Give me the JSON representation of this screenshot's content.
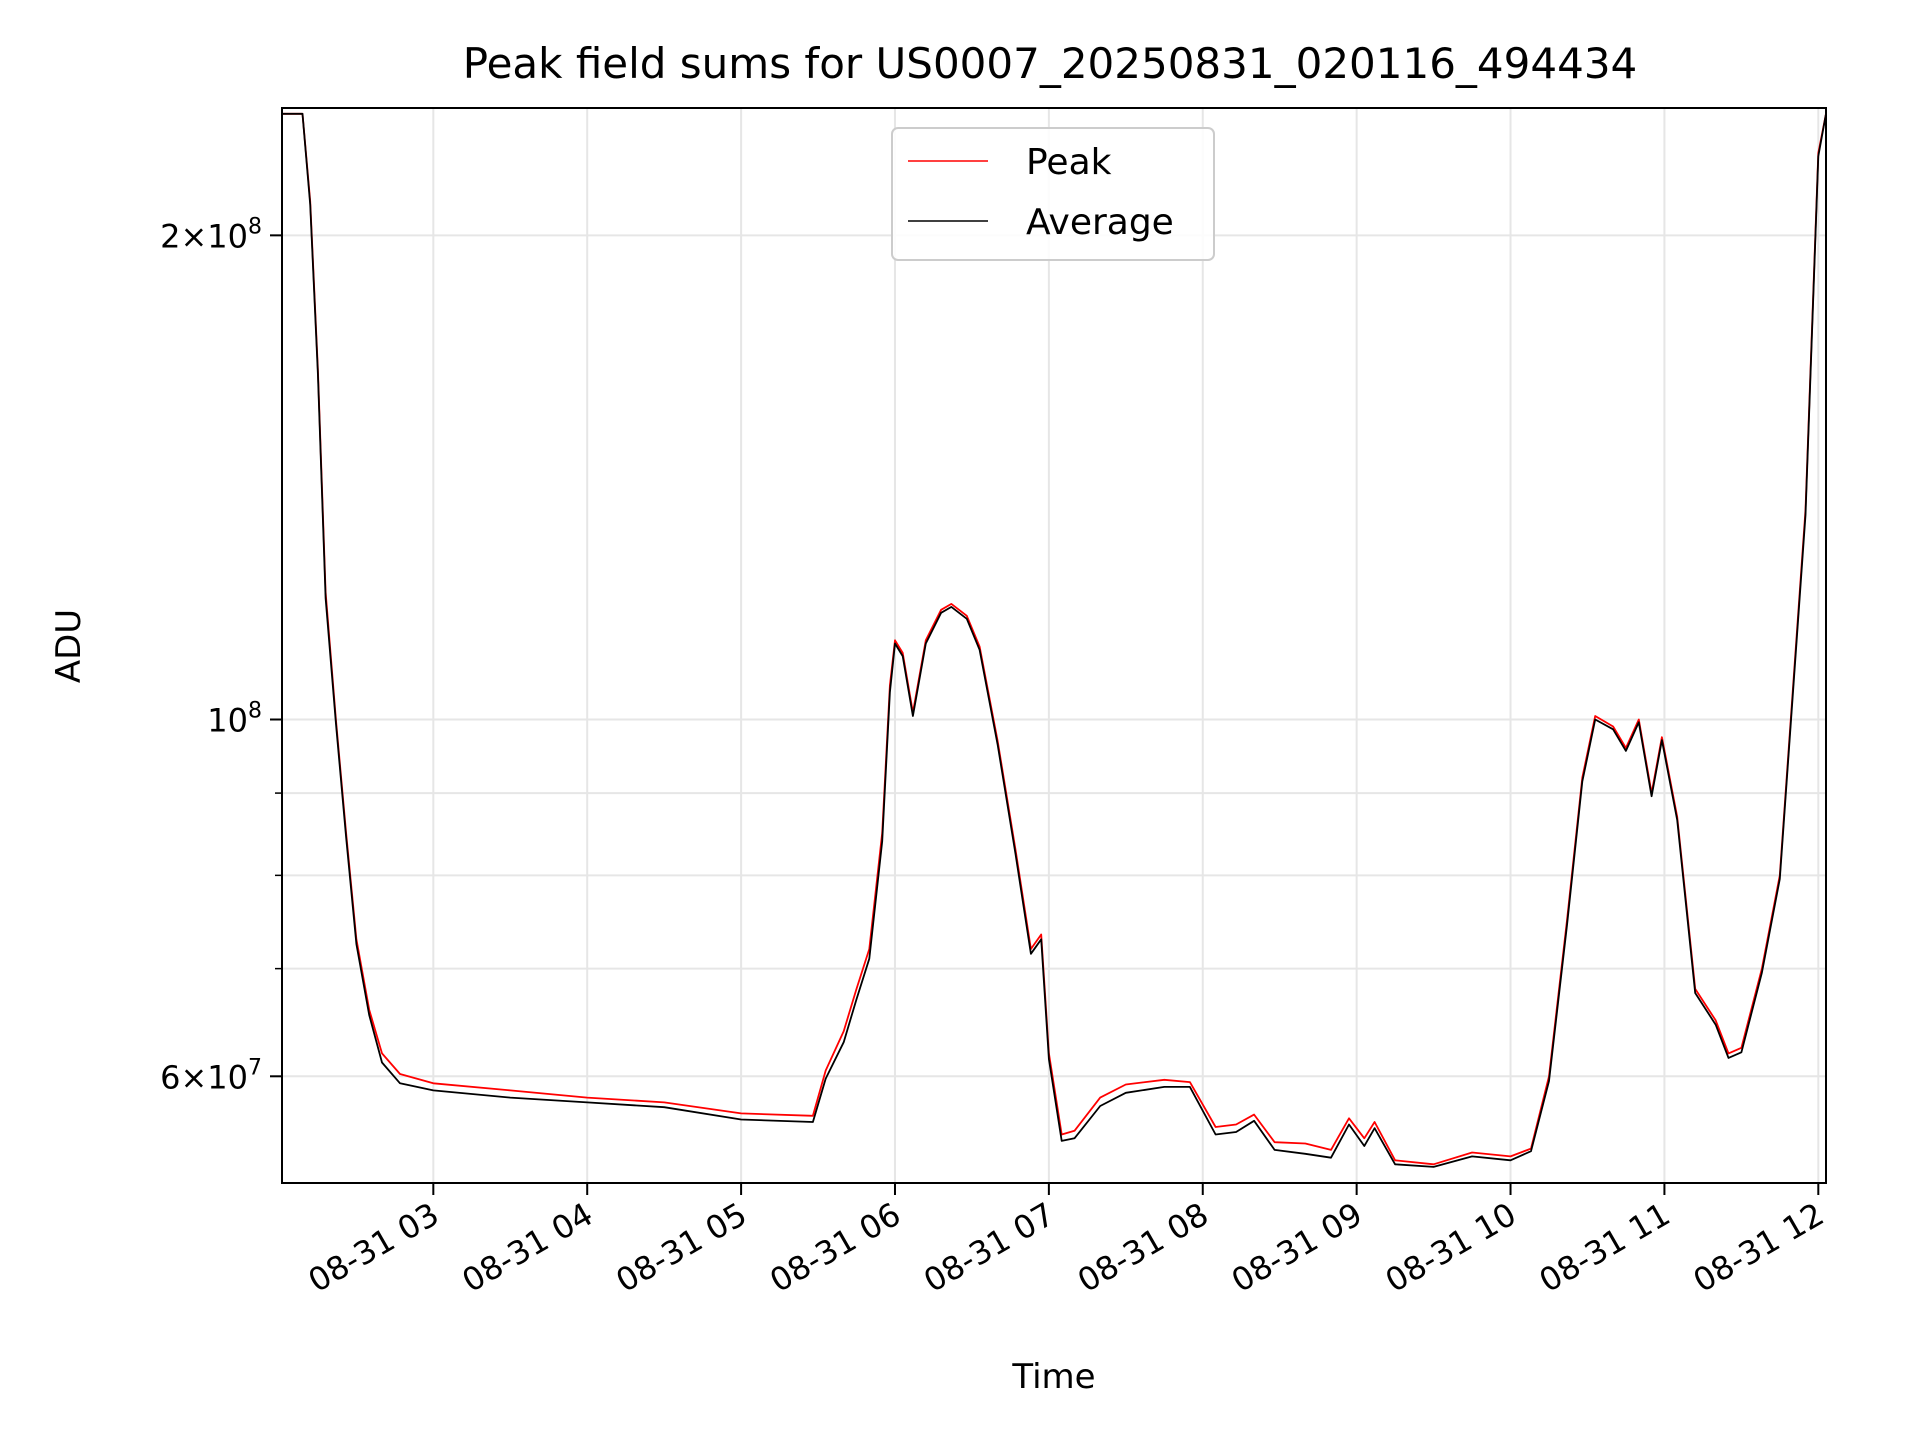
{
  "chart_data": {
    "type": "line",
    "title": "Peak field sums for US0007_20250831_020116_494434",
    "xlabel": "Time",
    "ylabel": "ADU",
    "y_scale": "log",
    "grid": true,
    "legend_position": "upper center",
    "x_range": [
      "08-31 02:01",
      "08-31 12:03"
    ],
    "ylim": [
      51500000,
      240000000
    ],
    "x_ticks": [
      "08-31 03",
      "08-31 04",
      "08-31 05",
      "08-31 06",
      "08-31 07",
      "08-31 08",
      "08-31 09",
      "08-31 10",
      "08-31 11",
      "08-31 12"
    ],
    "y_tick_labels": [
      {
        "value": 60000000,
        "label": "6 × 10^7",
        "mantissa": "6",
        "exponent": "7"
      },
      {
        "value": 100000000,
        "label": "10^8",
        "mantissa": "",
        "exponent": "8"
      },
      {
        "value": 200000000,
        "label": "2 × 10^8",
        "mantissa": "2",
        "exponent": "8"
      }
    ],
    "y_minor_ticks": [
      70000000,
      80000000,
      90000000
    ],
    "series": [
      {
        "name": "Peak",
        "color": "#ff0000",
        "points": [
          [
            "08-31 02:01",
            238000000
          ],
          [
            "08-31 02:09",
            238000000
          ],
          [
            "08-31 02:12",
            210000000
          ],
          [
            "08-31 02:15",
            165000000
          ],
          [
            "08-31 02:18",
            120000000
          ],
          [
            "08-31 02:22",
            100000000
          ],
          [
            "08-31 02:26",
            85000000
          ],
          [
            "08-31 02:30",
            73000000
          ],
          [
            "08-31 02:35",
            66000000
          ],
          [
            "08-31 02:40",
            62000000
          ],
          [
            "08-31 02:47",
            60200000
          ],
          [
            "08-31 03:00",
            59400000
          ],
          [
            "08-31 03:30",
            58800000
          ],
          [
            "08-31 04:00",
            58200000
          ],
          [
            "08-31 04:30",
            57800000
          ],
          [
            "08-31 05:00",
            56900000
          ],
          [
            "08-31 05:28",
            56700000
          ],
          [
            "08-31 05:33",
            60500000
          ],
          [
            "08-31 05:40",
            64000000
          ],
          [
            "08-31 05:45",
            68000000
          ],
          [
            "08-31 05:50",
            72000000
          ],
          [
            "08-31 05:55",
            85000000
          ],
          [
            "08-31 05:58",
            105000000
          ],
          [
            "08-31 06:00",
            112000000
          ],
          [
            "08-31 06:03",
            110000000
          ],
          [
            "08-31 06:07",
            101000000
          ],
          [
            "08-31 06:12",
            112000000
          ],
          [
            "08-31 06:18",
            117000000
          ],
          [
            "08-31 06:22",
            118000000
          ],
          [
            "08-31 06:28",
            116000000
          ],
          [
            "08-31 06:33",
            111000000
          ],
          [
            "08-31 06:40",
            97000000
          ],
          [
            "08-31 06:47",
            83000000
          ],
          [
            "08-31 06:53",
            72000000
          ],
          [
            "08-31 06:57",
            73500000
          ],
          [
            "08-31 07:00",
            62000000
          ],
          [
            "08-31 07:05",
            55200000
          ],
          [
            "08-31 07:10",
            55500000
          ],
          [
            "08-31 07:20",
            58200000
          ],
          [
            "08-31 07:30",
            59300000
          ],
          [
            "08-31 07:45",
            59700000
          ],
          [
            "08-31 07:55",
            59500000
          ],
          [
            "08-31 08:05",
            55800000
          ],
          [
            "08-31 08:13",
            56000000
          ],
          [
            "08-31 08:20",
            56800000
          ],
          [
            "08-31 08:28",
            54600000
          ],
          [
            "08-31 08:40",
            54500000
          ],
          [
            "08-31 08:50",
            54000000
          ],
          [
            "08-31 08:57",
            56500000
          ],
          [
            "08-31 09:03",
            54900000
          ],
          [
            "08-31 09:07",
            56200000
          ],
          [
            "08-31 09:15",
            53200000
          ],
          [
            "08-31 09:30",
            52900000
          ],
          [
            "08-31 09:45",
            53800000
          ],
          [
            "08-31 10:00",
            53500000
          ],
          [
            "08-31 10:08",
            54100000
          ],
          [
            "08-31 10:15",
            60000000
          ],
          [
            "08-31 10:22",
            75000000
          ],
          [
            "08-31 10:28",
            92000000
          ],
          [
            "08-31 10:33",
            100500000
          ],
          [
            "08-31 10:40",
            99000000
          ],
          [
            "08-31 10:45",
            96000000
          ],
          [
            "08-31 10:50",
            100000000
          ],
          [
            "08-31 10:55",
            90000000
          ],
          [
            "08-31 10:59",
            97500000
          ],
          [
            "08-31 11:05",
            87000000
          ],
          [
            "08-31 11:12",
            68000000
          ],
          [
            "08-31 11:20",
            65000000
          ],
          [
            "08-31 11:25",
            62000000
          ],
          [
            "08-31 11:30",
            62500000
          ],
          [
            "08-31 11:38",
            70000000
          ],
          [
            "08-31 11:45",
            80000000
          ],
          [
            "08-31 11:55",
            135000000
          ],
          [
            "08-31 12:00",
            225000000
          ],
          [
            "08-31 12:03",
            238000000
          ]
        ]
      },
      {
        "name": "Average",
        "color": "#000000",
        "points": [
          [
            "08-31 02:01",
            238000000
          ],
          [
            "08-31 02:09",
            238000000
          ],
          [
            "08-31 02:12",
            209000000
          ],
          [
            "08-31 02:15",
            164000000
          ],
          [
            "08-31 02:18",
            119000000
          ],
          [
            "08-31 02:22",
            99500000
          ],
          [
            "08-31 02:26",
            84500000
          ],
          [
            "08-31 02:30",
            72500000
          ],
          [
            "08-31 02:35",
            65500000
          ],
          [
            "08-31 02:40",
            61200000
          ],
          [
            "08-31 02:47",
            59400000
          ],
          [
            "08-31 03:00",
            58800000
          ],
          [
            "08-31 03:30",
            58200000
          ],
          [
            "08-31 04:00",
            57800000
          ],
          [
            "08-31 04:30",
            57400000
          ],
          [
            "08-31 05:00",
            56400000
          ],
          [
            "08-31 05:28",
            56200000
          ],
          [
            "08-31 05:33",
            59800000
          ],
          [
            "08-31 05:40",
            63000000
          ],
          [
            "08-31 05:45",
            67000000
          ],
          [
            "08-31 05:50",
            71000000
          ],
          [
            "08-31 05:55",
            84000000
          ],
          [
            "08-31 05:58",
            104000000
          ],
          [
            "08-31 06:00",
            111500000
          ],
          [
            "08-31 06:03",
            109500000
          ],
          [
            "08-31 06:07",
            100500000
          ],
          [
            "08-31 06:12",
            111500000
          ],
          [
            "08-31 06:18",
            116500000
          ],
          [
            "08-31 06:22",
            117500000
          ],
          [
            "08-31 06:28",
            115500000
          ],
          [
            "08-31 06:33",
            110500000
          ],
          [
            "08-31 06:40",
            96500000
          ],
          [
            "08-31 06:47",
            82500000
          ],
          [
            "08-31 06:53",
            71500000
          ],
          [
            "08-31 06:57",
            73000000
          ],
          [
            "08-31 07:00",
            61500000
          ],
          [
            "08-31 07:05",
            54700000
          ],
          [
            "08-31 07:10",
            54900000
          ],
          [
            "08-31 07:20",
            57500000
          ],
          [
            "08-31 07:30",
            58600000
          ],
          [
            "08-31 07:45",
            59100000
          ],
          [
            "08-31 07:55",
            59100000
          ],
          [
            "08-31 08:05",
            55200000
          ],
          [
            "08-31 08:13",
            55400000
          ],
          [
            "08-31 08:20",
            56300000
          ],
          [
            "08-31 08:28",
            54000000
          ],
          [
            "08-31 08:40",
            53700000
          ],
          [
            "08-31 08:50",
            53400000
          ],
          [
            "08-31 08:57",
            56000000
          ],
          [
            "08-31 09:03",
            54300000
          ],
          [
            "08-31 09:07",
            55700000
          ],
          [
            "08-31 09:15",
            52900000
          ],
          [
            "08-31 09:30",
            52700000
          ],
          [
            "08-31 09:45",
            53500000
          ],
          [
            "08-31 10:00",
            53200000
          ],
          [
            "08-31 10:08",
            53900000
          ],
          [
            "08-31 10:15",
            59600000
          ],
          [
            "08-31 10:22",
            74500000
          ],
          [
            "08-31 10:28",
            91500000
          ],
          [
            "08-31 10:33",
            100000000
          ],
          [
            "08-31 10:40",
            98600000
          ],
          [
            "08-31 10:45",
            95600000
          ],
          [
            "08-31 10:50",
            99600000
          ],
          [
            "08-31 10:55",
            89600000
          ],
          [
            "08-31 10:59",
            97100000
          ],
          [
            "08-31 11:05",
            86600000
          ],
          [
            "08-31 11:12",
            67600000
          ],
          [
            "08-31 11:20",
            64600000
          ],
          [
            "08-31 11:25",
            61600000
          ],
          [
            "08-31 11:30",
            62100000
          ],
          [
            "08-31 11:38",
            69600000
          ],
          [
            "08-31 11:45",
            79600000
          ],
          [
            "08-31 11:55",
            134000000
          ],
          [
            "08-31 12:00",
            224000000
          ],
          [
            "08-31 12:03",
            238000000
          ]
        ]
      }
    ]
  }
}
